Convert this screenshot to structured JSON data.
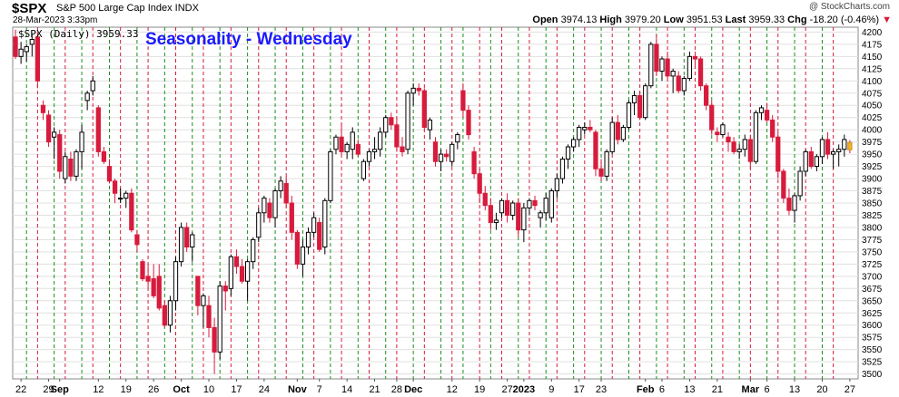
{
  "header": {
    "symbol": "$SPX",
    "name": "S&P 500 Large Cap Index INDX",
    "timestamp": "28-Mar-2023 3:33pm",
    "credit": "@ StockCharts.com",
    "open_label": "Open",
    "open": "3974.13",
    "high_label": "High",
    "high": "3979.20",
    "low_label": "Low",
    "low": "3951.53",
    "last_label": "Last",
    "last": "3959.33",
    "chg_label": "Chg",
    "chg": "-18.20 (-0.46%)",
    "chg_arrow": "▼"
  },
  "legend": {
    "label": "$SPX (Daily) 3959.33"
  },
  "colors": {
    "down_candle": "#d81b3c",
    "up_candle": "#ffffff",
    "grid": "#e0e0e0",
    "green_line": "#1a8f1a",
    "red_line": "#d81b3c",
    "title": "#1a1aff",
    "last_candle": "#f0b429"
  },
  "chart_data": {
    "type": "candlestick",
    "title": "Seasonality - Wednesday",
    "ylim": [
      3490,
      4210
    ],
    "y_ticks": [
      3500,
      3525,
      3550,
      3575,
      3600,
      3625,
      3650,
      3675,
      3700,
      3725,
      3750,
      3775,
      3800,
      3825,
      3850,
      3875,
      3900,
      3925,
      3950,
      3975,
      4000,
      4025,
      4050,
      4075,
      4100,
      4125,
      4150,
      4175,
      4200
    ],
    "y_axis_position": "right",
    "x_tick_labels": [
      {
        "label": "22",
        "day": 1,
        "bold": false
      },
      {
        "label": "29",
        "day": 6,
        "bold": false
      },
      {
        "label": "Sep",
        "day": 8,
        "bold": true
      },
      {
        "label": "12",
        "day": 15,
        "bold": false
      },
      {
        "label": "19",
        "day": 20,
        "bold": false
      },
      {
        "label": "26",
        "day": 25,
        "bold": false
      },
      {
        "label": "Oct",
        "day": 30,
        "bold": true
      },
      {
        "label": "10",
        "day": 35,
        "bold": false
      },
      {
        "label": "17",
        "day": 40,
        "bold": false
      },
      {
        "label": "24",
        "day": 45,
        "bold": false
      },
      {
        "label": "Nov",
        "day": 51,
        "bold": true
      },
      {
        "label": "7",
        "day": 55,
        "bold": false
      },
      {
        "label": "14",
        "day": 60,
        "bold": false
      },
      {
        "label": "21",
        "day": 65,
        "bold": false
      },
      {
        "label": "28",
        "day": 69,
        "bold": false
      },
      {
        "label": "Dec",
        "day": 72,
        "bold": true
      },
      {
        "label": "12",
        "day": 79,
        "bold": false
      },
      {
        "label": "19",
        "day": 84,
        "bold": false
      },
      {
        "label": "27",
        "day": 89,
        "bold": false
      },
      {
        "label": "2023",
        "day": 92,
        "bold": true
      },
      {
        "label": "9",
        "day": 97,
        "bold": false
      },
      {
        "label": "17",
        "day": 102,
        "bold": false
      },
      {
        "label": "23",
        "day": 106,
        "bold": false
      },
      {
        "label": "Feb",
        "day": 114,
        "bold": true
      },
      {
        "label": "6",
        "day": 117,
        "bold": false
      },
      {
        "label": "13",
        "day": 122,
        "bold": false
      },
      {
        "label": "21",
        "day": 127,
        "bold": false
      },
      {
        "label": "Mar",
        "day": 133,
        "bold": true
      },
      {
        "label": "6",
        "day": 136,
        "bold": false
      },
      {
        "label": "13",
        "day": 141,
        "bold": false
      },
      {
        "label": "20",
        "day": 146,
        "bold": false
      },
      {
        "label": "27",
        "day": 151,
        "bold": false
      }
    ],
    "green_lines_day": [
      2,
      7,
      12,
      17,
      22,
      27,
      32,
      37,
      42,
      47,
      52,
      57,
      62,
      67,
      72,
      77,
      81,
      86,
      91,
      96,
      101,
      106,
      111,
      116,
      121,
      126,
      131,
      136,
      141,
      146
    ],
    "red_lines_day": [
      4,
      9,
      14,
      19,
      24,
      29,
      34,
      39,
      44,
      49,
      54,
      59,
      64,
      69,
      74,
      79,
      84,
      88,
      93,
      98,
      103,
      108,
      113,
      118,
      123,
      128,
      133,
      138,
      143,
      148
    ],
    "candles": [
      {
        "o": 4190,
        "h": 4205,
        "l": 4145,
        "c": 4150
      },
      {
        "o": 4150,
        "h": 4180,
        "l": 4135,
        "c": 4165
      },
      {
        "o": 4160,
        "h": 4175,
        "l": 4140,
        "c": 4170
      },
      {
        "o": 4175,
        "h": 4195,
        "l": 4150,
        "c": 4185
      },
      {
        "o": 4190,
        "h": 4200,
        "l": 4085,
        "c": 4100
      },
      {
        "o": 4050,
        "h": 4060,
        "l": 4020,
        "c": 4035
      },
      {
        "o": 4030,
        "h": 4040,
        "l": 3965,
        "c": 3975
      },
      {
        "o": 3985,
        "h": 4005,
        "l": 3940,
        "c": 3995
      },
      {
        "o": 3990,
        "h": 4000,
        "l": 3900,
        "c": 3915
      },
      {
        "o": 3900,
        "h": 3955,
        "l": 3890,
        "c": 3945
      },
      {
        "o": 3940,
        "h": 3955,
        "l": 3895,
        "c": 3905
      },
      {
        "o": 3905,
        "h": 3960,
        "l": 3895,
        "c": 3955
      },
      {
        "o": 3955,
        "h": 4010,
        "l": 3920,
        "c": 3995
      },
      {
        "o": 4060,
        "h": 4080,
        "l": 4040,
        "c": 4075
      },
      {
        "o": 4080,
        "h": 4110,
        "l": 4070,
        "c": 4100
      },
      {
        "o": 4045,
        "h": 4050,
        "l": 3945,
        "c": 3955
      },
      {
        "o": 3955,
        "h": 3965,
        "l": 3930,
        "c": 3935
      },
      {
        "o": 3925,
        "h": 3940,
        "l": 3890,
        "c": 3895
      },
      {
        "o": 3895,
        "h": 3900,
        "l": 3850,
        "c": 3870
      },
      {
        "o": 3860,
        "h": 3880,
        "l": 3850,
        "c": 3860
      },
      {
        "o": 3860,
        "h": 3875,
        "l": 3840,
        "c": 3870
      },
      {
        "o": 3870,
        "h": 3880,
        "l": 3790,
        "c": 3795
      },
      {
        "o": 3785,
        "h": 3795,
        "l": 3750,
        "c": 3765
      },
      {
        "o": 3730,
        "h": 3735,
        "l": 3690,
        "c": 3695
      },
      {
        "o": 3700,
        "h": 3725,
        "l": 3675,
        "c": 3690
      },
      {
        "o": 3695,
        "h": 3725,
        "l": 3655,
        "c": 3660
      },
      {
        "o": 3700,
        "h": 3725,
        "l": 3630,
        "c": 3635
      },
      {
        "o": 3640,
        "h": 3650,
        "l": 3595,
        "c": 3600
      },
      {
        "o": 3600,
        "h": 3660,
        "l": 3585,
        "c": 3650
      },
      {
        "o": 3650,
        "h": 3740,
        "l": 3630,
        "c": 3730
      },
      {
        "o": 3730,
        "h": 3810,
        "l": 3720,
        "c": 3800
      },
      {
        "o": 3800,
        "h": 3810,
        "l": 3750,
        "c": 3760
      },
      {
        "o": 3760,
        "h": 3790,
        "l": 3730,
        "c": 3785
      },
      {
        "o": 3700,
        "h": 3700,
        "l": 3620,
        "c": 3640
      },
      {
        "o": 3640,
        "h": 3665,
        "l": 3595,
        "c": 3660
      },
      {
        "o": 3640,
        "h": 3660,
        "l": 3575,
        "c": 3595
      },
      {
        "o": 3595,
        "h": 3615,
        "l": 3500,
        "c": 3545
      },
      {
        "o": 3545,
        "h": 3690,
        "l": 3530,
        "c": 3680
      },
      {
        "o": 3680,
        "h": 3690,
        "l": 3630,
        "c": 3670
      },
      {
        "o": 3675,
        "h": 3745,
        "l": 3660,
        "c": 3740
      },
      {
        "o": 3740,
        "h": 3755,
        "l": 3705,
        "c": 3720
      },
      {
        "o": 3720,
        "h": 3735,
        "l": 3685,
        "c": 3690
      },
      {
        "o": 3690,
        "h": 3735,
        "l": 3650,
        "c": 3730
      },
      {
        "o": 3730,
        "h": 3780,
        "l": 3715,
        "c": 3775
      },
      {
        "o": 3780,
        "h": 3840,
        "l": 3770,
        "c": 3830
      },
      {
        "o": 3830,
        "h": 3865,
        "l": 3810,
        "c": 3860
      },
      {
        "o": 3850,
        "h": 3860,
        "l": 3810,
        "c": 3820
      },
      {
        "o": 3820,
        "h": 3880,
        "l": 3800,
        "c": 3875
      },
      {
        "o": 3875,
        "h": 3905,
        "l": 3860,
        "c": 3895
      },
      {
        "o": 3890,
        "h": 3905,
        "l": 3840,
        "c": 3850
      },
      {
        "o": 3850,
        "h": 3865,
        "l": 3775,
        "c": 3790
      },
      {
        "o": 3790,
        "h": 3795,
        "l": 3715,
        "c": 3725
      },
      {
        "o": 3725,
        "h": 3775,
        "l": 3700,
        "c": 3760
      },
      {
        "o": 3760,
        "h": 3800,
        "l": 3745,
        "c": 3790
      },
      {
        "o": 3790,
        "h": 3830,
        "l": 3780,
        "c": 3820
      },
      {
        "o": 3810,
        "h": 3820,
        "l": 3750,
        "c": 3755
      },
      {
        "o": 3760,
        "h": 3860,
        "l": 3745,
        "c": 3855
      },
      {
        "o": 3855,
        "h": 3960,
        "l": 3850,
        "c": 3955
      },
      {
        "o": 3960,
        "h": 3990,
        "l": 3950,
        "c": 3985
      },
      {
        "o": 3985,
        "h": 4015,
        "l": 3950,
        "c": 3955
      },
      {
        "o": 3955,
        "h": 3975,
        "l": 3940,
        "c": 3970
      },
      {
        "o": 3960,
        "h": 4005,
        "l": 3940,
        "c": 3995
      },
      {
        "o": 3970,
        "h": 3980,
        "l": 3945,
        "c": 3950
      },
      {
        "o": 3900,
        "h": 3940,
        "l": 3895,
        "c": 3935
      },
      {
        "o": 3935,
        "h": 3960,
        "l": 3925,
        "c": 3955
      },
      {
        "o": 3955,
        "h": 3985,
        "l": 3940,
        "c": 3960
      },
      {
        "o": 3960,
        "h": 4005,
        "l": 3945,
        "c": 3995
      },
      {
        "o": 3995,
        "h": 4030,
        "l": 3985,
        "c": 4025
      },
      {
        "o": 4025,
        "h": 4035,
        "l": 4000,
        "c": 4010
      },
      {
        "o": 4010,
        "h": 4025,
        "l": 3955,
        "c": 3965
      },
      {
        "o": 3965,
        "h": 3985,
        "l": 3945,
        "c": 3955
      },
      {
        "o": 3960,
        "h": 4080,
        "l": 3950,
        "c": 4075
      },
      {
        "o": 4075,
        "h": 4095,
        "l": 4050,
        "c": 4085
      },
      {
        "o": 4085,
        "h": 4095,
        "l": 4070,
        "c": 4080
      },
      {
        "o": 4080,
        "h": 4085,
        "l": 4000,
        "c": 4005
      },
      {
        "o": 4000,
        "h": 4025,
        "l": 3980,
        "c": 4020
      },
      {
        "o": 3975,
        "h": 3985,
        "l": 3925,
        "c": 3935
      },
      {
        "o": 3935,
        "h": 3960,
        "l": 3915,
        "c": 3950
      },
      {
        "o": 3950,
        "h": 3960,
        "l": 3935,
        "c": 3945
      },
      {
        "o": 3935,
        "h": 3975,
        "l": 3925,
        "c": 3970
      },
      {
        "o": 3975,
        "h": 3995,
        "l": 3960,
        "c": 3990
      },
      {
        "o": 4080,
        "h": 4095,
        "l": 4025,
        "c": 4040
      },
      {
        "o": 4040,
        "h": 4050,
        "l": 3980,
        "c": 3990
      },
      {
        "o": 3955,
        "h": 3965,
        "l": 3900,
        "c": 3910
      },
      {
        "o": 3910,
        "h": 3920,
        "l": 3850,
        "c": 3870
      },
      {
        "o": 3870,
        "h": 3885,
        "l": 3835,
        "c": 3845
      },
      {
        "o": 3845,
        "h": 3860,
        "l": 3795,
        "c": 3810
      },
      {
        "o": 3810,
        "h": 3830,
        "l": 3795,
        "c": 3815
      },
      {
        "o": 3830,
        "h": 3860,
        "l": 3820,
        "c": 3855
      },
      {
        "o": 3855,
        "h": 3870,
        "l": 3810,
        "c": 3825
      },
      {
        "o": 3825,
        "h": 3855,
        "l": 3815,
        "c": 3850
      },
      {
        "o": 3850,
        "h": 3860,
        "l": 3780,
        "c": 3795
      },
      {
        "o": 3795,
        "h": 3850,
        "l": 3770,
        "c": 3840
      },
      {
        "o": 3840,
        "h": 3860,
        "l": 3825,
        "c": 3855
      },
      {
        "o": 3855,
        "h": 3865,
        "l": 3835,
        "c": 3845
      },
      {
        "o": 3820,
        "h": 3835,
        "l": 3800,
        "c": 3830
      },
      {
        "o": 3830,
        "h": 3870,
        "l": 3815,
        "c": 3860
      },
      {
        "o": 3820,
        "h": 3880,
        "l": 3810,
        "c": 3875
      },
      {
        "o": 3875,
        "h": 3910,
        "l": 3860,
        "c": 3900
      },
      {
        "o": 3900,
        "h": 3945,
        "l": 3890,
        "c": 3940
      },
      {
        "o": 3940,
        "h": 3970,
        "l": 3920,
        "c": 3965
      },
      {
        "o": 3965,
        "h": 3985,
        "l": 3955,
        "c": 3980
      },
      {
        "o": 3980,
        "h": 4010,
        "l": 3965,
        "c": 4005
      },
      {
        "o": 4000,
        "h": 4015,
        "l": 3990,
        "c": 4005
      },
      {
        "o": 4005,
        "h": 4020,
        "l": 3995,
        "c": 4000
      },
      {
        "o": 3995,
        "h": 4000,
        "l": 3905,
        "c": 3920
      },
      {
        "o": 3920,
        "h": 3940,
        "l": 3895,
        "c": 3905
      },
      {
        "o": 3905,
        "h": 3960,
        "l": 3895,
        "c": 3955
      },
      {
        "o": 3955,
        "h": 4025,
        "l": 3950,
        "c": 4015
      },
      {
        "o": 4015,
        "h": 4030,
        "l": 3970,
        "c": 3980
      },
      {
        "o": 3980,
        "h": 4010,
        "l": 3975,
        "c": 4005
      },
      {
        "o": 4005,
        "h": 4060,
        "l": 4000,
        "c": 4055
      },
      {
        "o": 4055,
        "h": 4080,
        "l": 4030,
        "c": 4070
      },
      {
        "o": 4070,
        "h": 4080,
        "l": 4020,
        "c": 4025
      },
      {
        "o": 4025,
        "h": 4095,
        "l": 4020,
        "c": 4090
      },
      {
        "o": 4090,
        "h": 4180,
        "l": 4085,
        "c": 4175
      },
      {
        "o": 4175,
        "h": 4195,
        "l": 4110,
        "c": 4120
      },
      {
        "o": 4120,
        "h": 4150,
        "l": 4100,
        "c": 4145
      },
      {
        "o": 4145,
        "h": 4160,
        "l": 4100,
        "c": 4110
      },
      {
        "o": 4110,
        "h": 4125,
        "l": 4075,
        "c": 4120
      },
      {
        "o": 4110,
        "h": 4120,
        "l": 4075,
        "c": 4080
      },
      {
        "o": 4080,
        "h": 4110,
        "l": 4070,
        "c": 4105
      },
      {
        "o": 4105,
        "h": 4160,
        "l": 4100,
        "c": 4150
      },
      {
        "o": 4150,
        "h": 4160,
        "l": 4130,
        "c": 4145
      },
      {
        "o": 4145,
        "h": 4150,
        "l": 4080,
        "c": 4090
      },
      {
        "o": 4090,
        "h": 4095,
        "l": 4040,
        "c": 4050
      },
      {
        "o": 4050,
        "h": 4060,
        "l": 3990,
        "c": 4000
      },
      {
        "o": 3995,
        "h": 4005,
        "l": 3975,
        "c": 3990
      },
      {
        "o": 3990,
        "h": 4015,
        "l": 3985,
        "c": 4010
      },
      {
        "o": 3985,
        "h": 3995,
        "l": 3955,
        "c": 3975
      },
      {
        "o": 3975,
        "h": 3985,
        "l": 3950,
        "c": 3955
      },
      {
        "o": 3955,
        "h": 3970,
        "l": 3940,
        "c": 3960
      },
      {
        "o": 3960,
        "h": 3990,
        "l": 3945,
        "c": 3980
      },
      {
        "o": 3980,
        "h": 3990,
        "l": 3920,
        "c": 3935
      },
      {
        "o": 3935,
        "h": 4040,
        "l": 3930,
        "c": 4035
      },
      {
        "o": 4035,
        "h": 4050,
        "l": 4020,
        "c": 4045
      },
      {
        "o": 4040,
        "h": 4055,
        "l": 4015,
        "c": 4020
      },
      {
        "o": 4020,
        "h": 4030,
        "l": 3975,
        "c": 3985
      },
      {
        "o": 3985,
        "h": 3995,
        "l": 3900,
        "c": 3915
      },
      {
        "o": 3915,
        "h": 3920,
        "l": 3850,
        "c": 3860
      },
      {
        "o": 3860,
        "h": 3880,
        "l": 3825,
        "c": 3835
      },
      {
        "o": 3835,
        "h": 3870,
        "l": 3810,
        "c": 3865
      },
      {
        "o": 3865,
        "h": 3925,
        "l": 3855,
        "c": 3915
      },
      {
        "o": 3915,
        "h": 3960,
        "l": 3905,
        "c": 3955
      },
      {
        "o": 3955,
        "h": 3965,
        "l": 3920,
        "c": 3925
      },
      {
        "o": 3925,
        "h": 3950,
        "l": 3915,
        "c": 3945
      },
      {
        "o": 3945,
        "h": 3985,
        "l": 3930,
        "c": 3980
      },
      {
        "o": 3980,
        "h": 3995,
        "l": 3940,
        "c": 3950
      },
      {
        "o": 3950,
        "h": 3960,
        "l": 3920,
        "c": 3955
      },
      {
        "o": 3955,
        "h": 3970,
        "l": 3925,
        "c": 3960
      },
      {
        "o": 3960,
        "h": 3990,
        "l": 3945,
        "c": 3980
      },
      {
        "o": 3974,
        "h": 3979,
        "l": 3952,
        "c": 3959
      }
    ]
  }
}
